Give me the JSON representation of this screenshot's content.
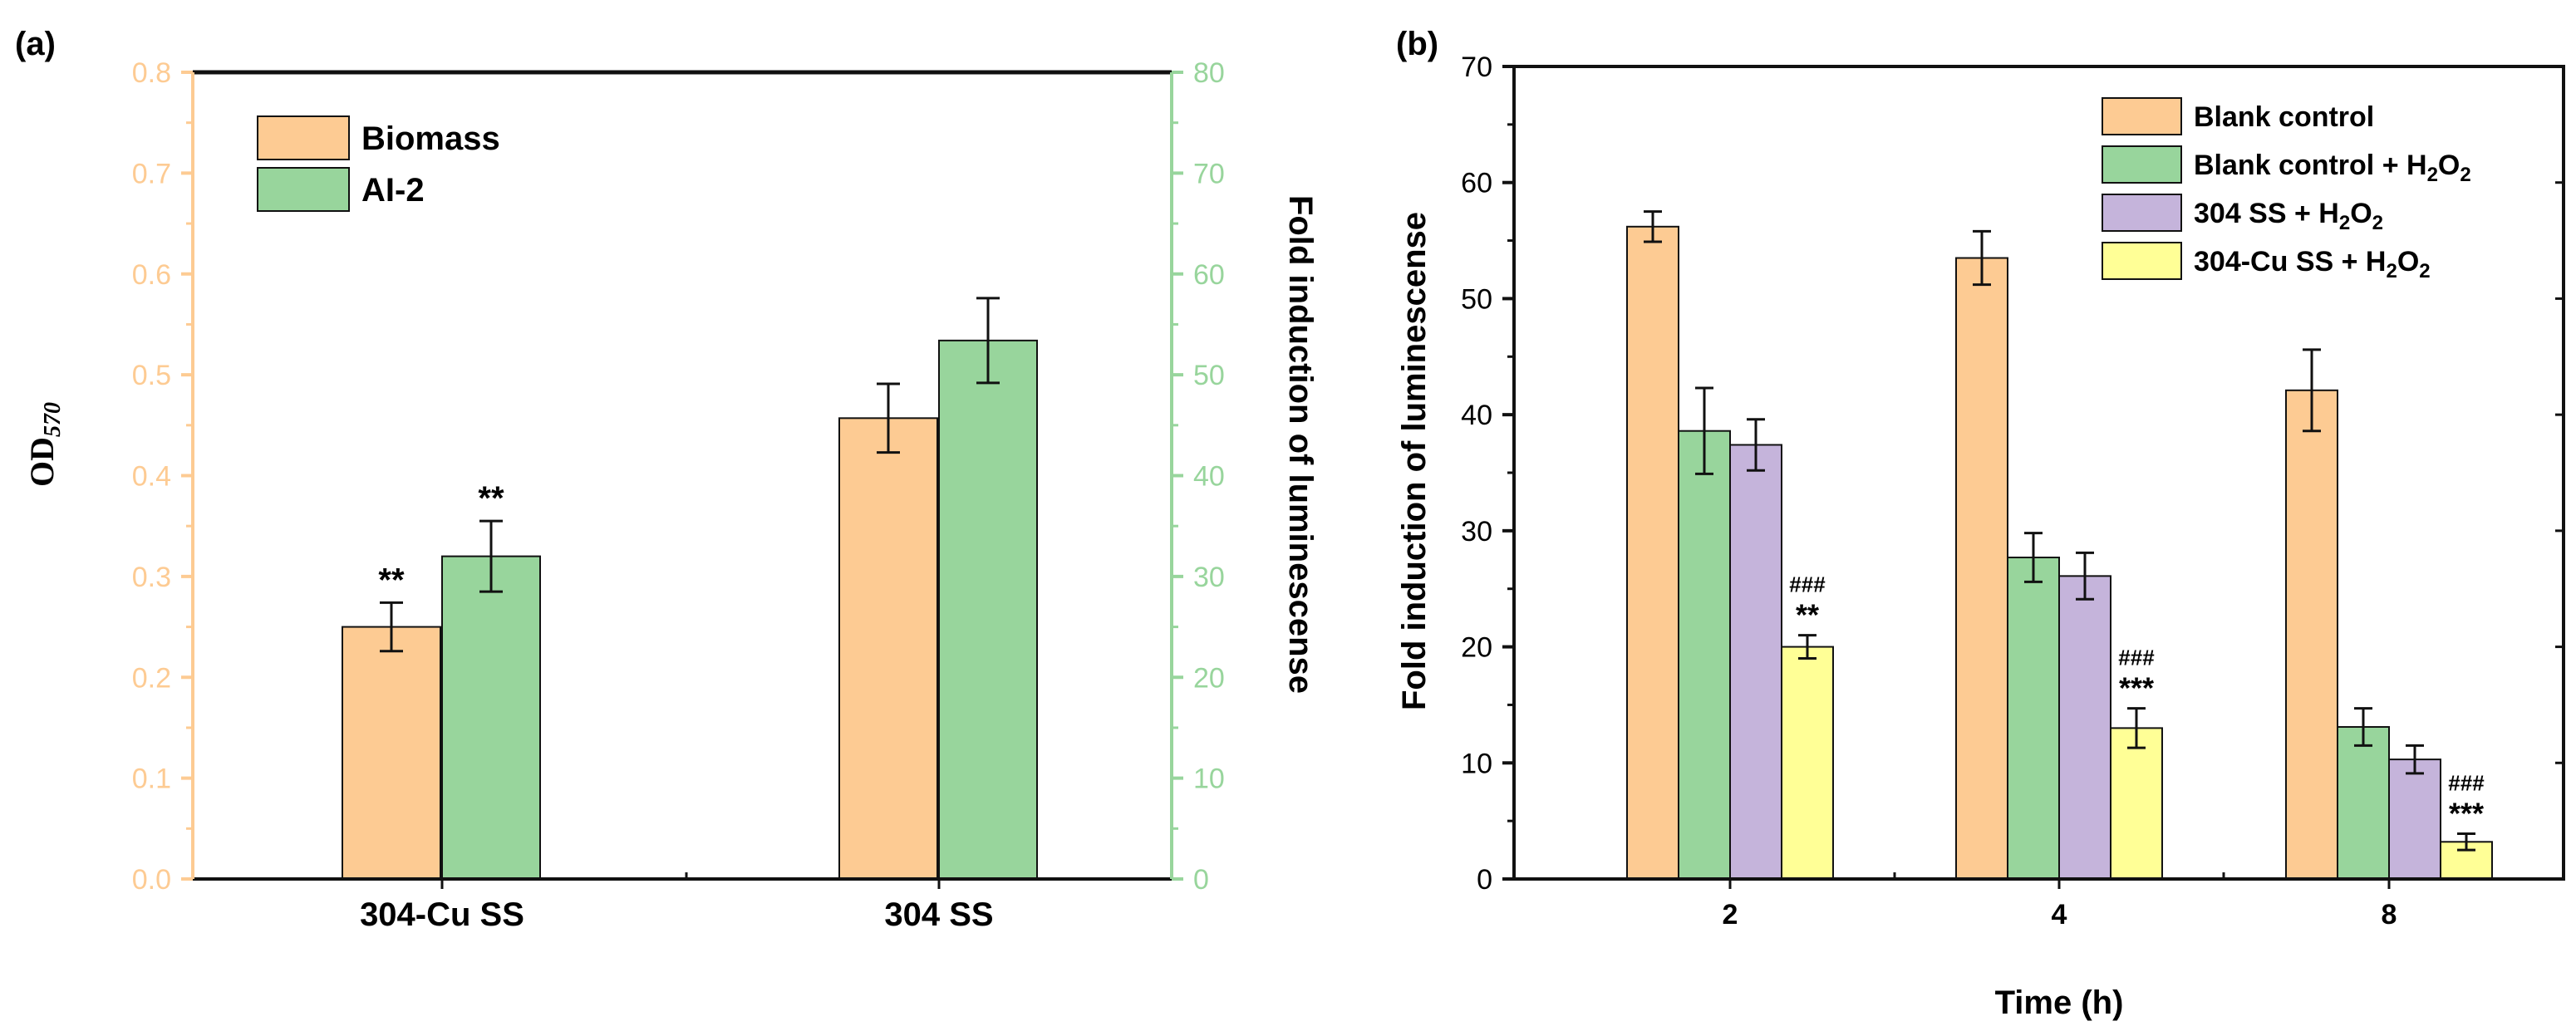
{
  "colors": {
    "orange": "#FDCB93",
    "green": "#98D59C",
    "purple": "#C5B4DB",
    "yellow": "#FFFF96",
    "left_axis": "#FDCB93",
    "right_axis": "#98D59C"
  },
  "chart_data": [
    {
      "type": "bar",
      "panel_label": "(a)",
      "categories": [
        "304-Cu SS",
        "304 SS"
      ],
      "ylabel": "OD",
      "ylabel_sub": "570",
      "y2label": "Fold induction of luminescense",
      "ylim": [
        0.0,
        0.8
      ],
      "y2lim": [
        0,
        80
      ],
      "yticks": [
        "0.0",
        "0.1",
        "0.2",
        "0.3",
        "0.4",
        "0.5",
        "0.6",
        "0.7",
        "0.8"
      ],
      "y2ticks": [
        "0",
        "10",
        "20",
        "30",
        "40",
        "50",
        "60",
        "70",
        "80"
      ],
      "legend_position": "top-left",
      "series": [
        {
          "name": "Biomass",
          "axis": "left",
          "color_key": "orange",
          "values": [
            0.25,
            0.457
          ],
          "errors": [
            0.024,
            0.034
          ],
          "annotations": [
            "**",
            ""
          ]
        },
        {
          "name": "AI-2",
          "axis": "right",
          "color_key": "green",
          "values": [
            32.0,
            53.4
          ],
          "errors": [
            3.5,
            4.2
          ],
          "annotations": [
            "**",
            ""
          ]
        }
      ]
    },
    {
      "type": "bar",
      "panel_label": "(b)",
      "categories": [
        "2",
        "4",
        "8"
      ],
      "xlabel": "Time (h)",
      "ylabel": "Fold induction of luminescense",
      "ylim": [
        0,
        70
      ],
      "yticks": [
        "0",
        "10",
        "20",
        "30",
        "40",
        "50",
        "60",
        "70"
      ],
      "legend_position": "top-right",
      "series": [
        {
          "name": "Blank control",
          "sub": "",
          "color_key": "orange",
          "values": [
            56.2,
            53.5,
            42.1
          ],
          "errors": [
            1.3,
            2.3,
            3.5
          ],
          "annotations": [
            [],
            [],
            []
          ]
        },
        {
          "name": "Blank control + H",
          "sub": "2",
          "tail": "O",
          "sub2": "2",
          "color_key": "green",
          "values": [
            38.6,
            27.7,
            13.1
          ],
          "errors": [
            3.7,
            2.1,
            1.6
          ],
          "annotations": [
            [],
            [],
            []
          ]
        },
        {
          "name": "304 SS + H",
          "sub": "2",
          "tail": "O",
          "sub2": "2",
          "color_key": "purple",
          "values": [
            37.4,
            26.1,
            10.3
          ],
          "errors": [
            2.2,
            2.0,
            1.2
          ],
          "annotations": [
            [],
            [],
            []
          ]
        },
        {
          "name": "304-Cu SS + H",
          "sub": "2",
          "tail": "O",
          "sub2": "2",
          "color_key": "yellow",
          "values": [
            20.0,
            13.0,
            3.2
          ],
          "errors": [
            1.0,
            1.7,
            0.7
          ],
          "annotations": [
            [
              "###",
              "**"
            ],
            [
              "###",
              "***"
            ],
            [
              "###",
              "***"
            ]
          ]
        }
      ]
    }
  ]
}
